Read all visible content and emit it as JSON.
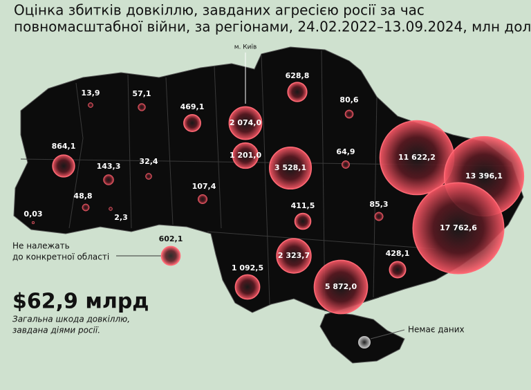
{
  "title_lines": [
    "Оцінка збитків довкіллю, завданих агресією росії за час",
    "повномасштабної війни, за регіонами, 24.02.2022–13.09.2024, млн дол."
  ],
  "kyiv_label": "м. Київ",
  "unassigned_note_lines": [
    "Не належать",
    "до конкретної області"
  ],
  "no_data_label": "Немає даних",
  "total": {
    "label": "$62,9 млрд",
    "caption_lines": [
      "Загальна шкода довкіллю,",
      "завдана діями росії."
    ]
  },
  "bubbles": [
    {
      "value": 13.9,
      "label": "13,9"
    },
    {
      "value": 57.1,
      "label": "57,1"
    },
    {
      "value": 469.1,
      "label": "469,1"
    },
    {
      "value": 864.1,
      "label": "864,1"
    },
    {
      "value": 143.3,
      "label": "143,3"
    },
    {
      "value": 32.4,
      "label": "32,4"
    },
    {
      "value": 48.8,
      "label": "48,8"
    },
    {
      "value": 0.03,
      "label": "0,03"
    },
    {
      "value": 2.3,
      "label": "2,3"
    },
    {
      "value": 107.4,
      "label": "107,4"
    },
    {
      "value": 2074.0,
      "label": "2 074,0"
    },
    {
      "value": 1201.0,
      "label": "1 201,0"
    },
    {
      "value": 628.8,
      "label": "628,8"
    },
    {
      "value": 80.6,
      "label": "80,6"
    },
    {
      "value": 64.9,
      "label": "64,9"
    },
    {
      "value": 3528.1,
      "label": "3 528,1"
    },
    {
      "value": 11622.2,
      "label": "11 622,2"
    },
    {
      "value": 13396.1,
      "label": "13 396,1"
    },
    {
      "value": 17762.6,
      "label": "17 762,6"
    },
    {
      "value": 411.5,
      "label": "411,5"
    },
    {
      "value": 85.3,
      "label": "85,3"
    },
    {
      "value": 2323.7,
      "label": "2 323,7"
    },
    {
      "value": 428.1,
      "label": "428,1"
    },
    {
      "value": 1092.5,
      "label": "1 092,5"
    },
    {
      "value": 5872.0,
      "label": "5 872,0"
    },
    {
      "value": 602.1,
      "label": "602,1"
    }
  ]
}
